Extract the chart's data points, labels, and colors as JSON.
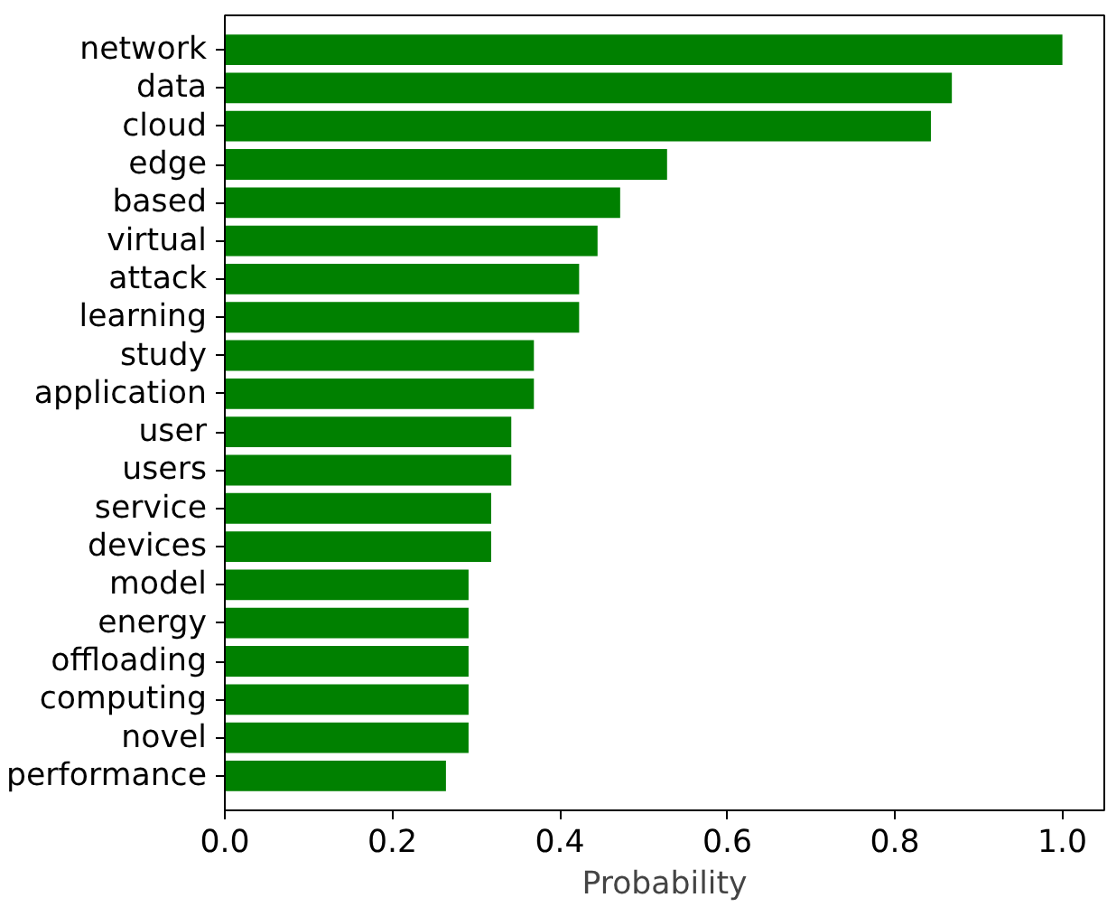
{
  "chart_data": {
    "type": "bar",
    "orientation": "horizontal",
    "xlabel": "Probability",
    "categories": [
      "network",
      "data",
      "cloud",
      "edge",
      "based",
      "virtual",
      "attack",
      "learning",
      "study",
      "application",
      "user",
      "users",
      "service",
      "devices",
      "model",
      "energy",
      "offloading",
      "computing",
      "novel",
      "performance"
    ],
    "values": [
      1.0,
      0.868,
      0.843,
      0.528,
      0.472,
      0.445,
      0.423,
      0.423,
      0.369,
      0.369,
      0.342,
      0.342,
      0.318,
      0.318,
      0.291,
      0.291,
      0.291,
      0.291,
      0.291,
      0.264
    ],
    "color": "#008000",
    "xlim": [
      0,
      1.05
    ],
    "xticks": [
      {
        "value": 0,
        "label": "0.0"
      },
      {
        "value": 0.2,
        "label": "0.2"
      },
      {
        "value": 0.4,
        "label": "0.4"
      },
      {
        "value": 0.6,
        "label": "0.6"
      },
      {
        "value": 0.8,
        "label": "0.8"
      },
      {
        "value": 1.0,
        "label": "1.0"
      }
    ],
    "grid": false
  }
}
